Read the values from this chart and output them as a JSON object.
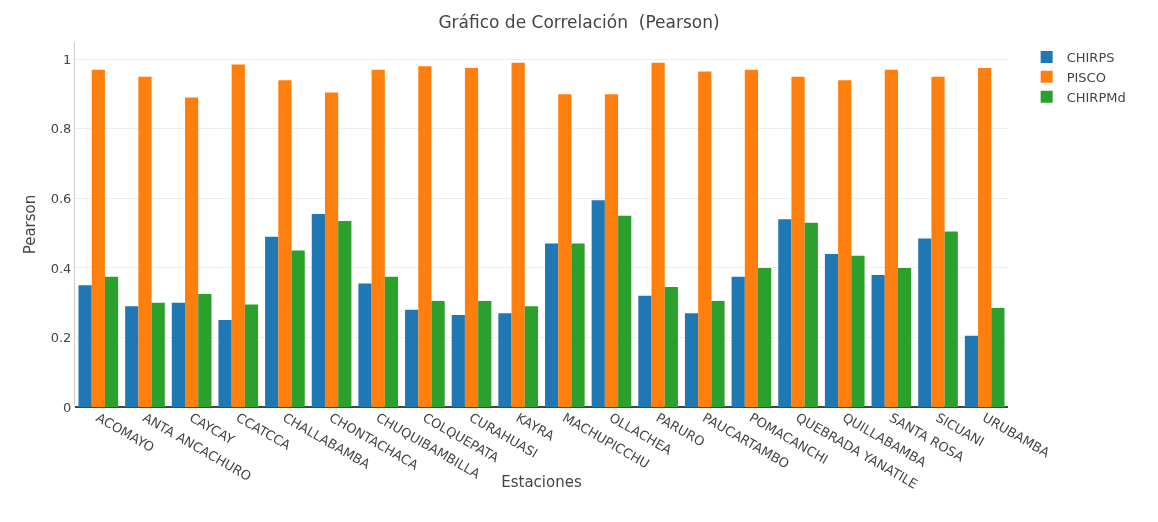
{
  "chart_data": {
    "type": "bar",
    "title": "Gráfico de Correlación  (Pearson)",
    "xlabel": "Estaciones",
    "ylabel": "Pearson",
    "categories": [
      "ACOMAYO",
      "ANTA ANCACHURO",
      "CAYCAY",
      "CCATCCA",
      "CHALLABAMBA",
      "CHONTACHACA",
      "CHUQUIBAMBILLA",
      "COLQUEPATA",
      "CURAHUASI",
      "KAYRA",
      "MACHUPICCHU",
      "OLLACHEA",
      "PARURO",
      "PAUCARTAMBO",
      "POMACANCHI",
      "QUEBRADA YANATILE",
      "QUILLABAMBA",
      "SANTA ROSA",
      "SICUANI",
      "URUBAMBA"
    ],
    "series": [
      {
        "name": "CHIRPS",
        "color": "#1f77b4",
        "values": [
          0.35,
          0.29,
          0.3,
          0.25,
          0.49,
          0.555,
          0.355,
          0.28,
          0.265,
          0.27,
          0.47,
          0.595,
          0.32,
          0.27,
          0.375,
          0.54,
          0.44,
          0.38,
          0.485,
          0.205
        ]
      },
      {
        "name": "PISCO",
        "color": "#ff7f0e",
        "values": [
          0.97,
          0.95,
          0.89,
          0.985,
          0.94,
          0.905,
          0.97,
          0.98,
          0.975,
          0.99,
          0.9,
          0.9,
          0.99,
          0.965,
          0.97,
          0.95,
          0.94,
          0.97,
          0.95,
          0.975
        ]
      },
      {
        "name": "CHIRPMd",
        "color": "#2ca02c",
        "values": [
          0.375,
          0.3,
          0.325,
          0.295,
          0.45,
          0.535,
          0.375,
          0.305,
          0.305,
          0.29,
          0.47,
          0.55,
          0.345,
          0.305,
          0.4,
          0.53,
          0.435,
          0.4,
          0.505,
          0.285
        ]
      }
    ],
    "ylim": [
      0,
      1.05
    ],
    "yticks": [
      0,
      0.2,
      0.4,
      0.6,
      0.8,
      1
    ],
    "grid": "y",
    "legend": "top right"
  }
}
